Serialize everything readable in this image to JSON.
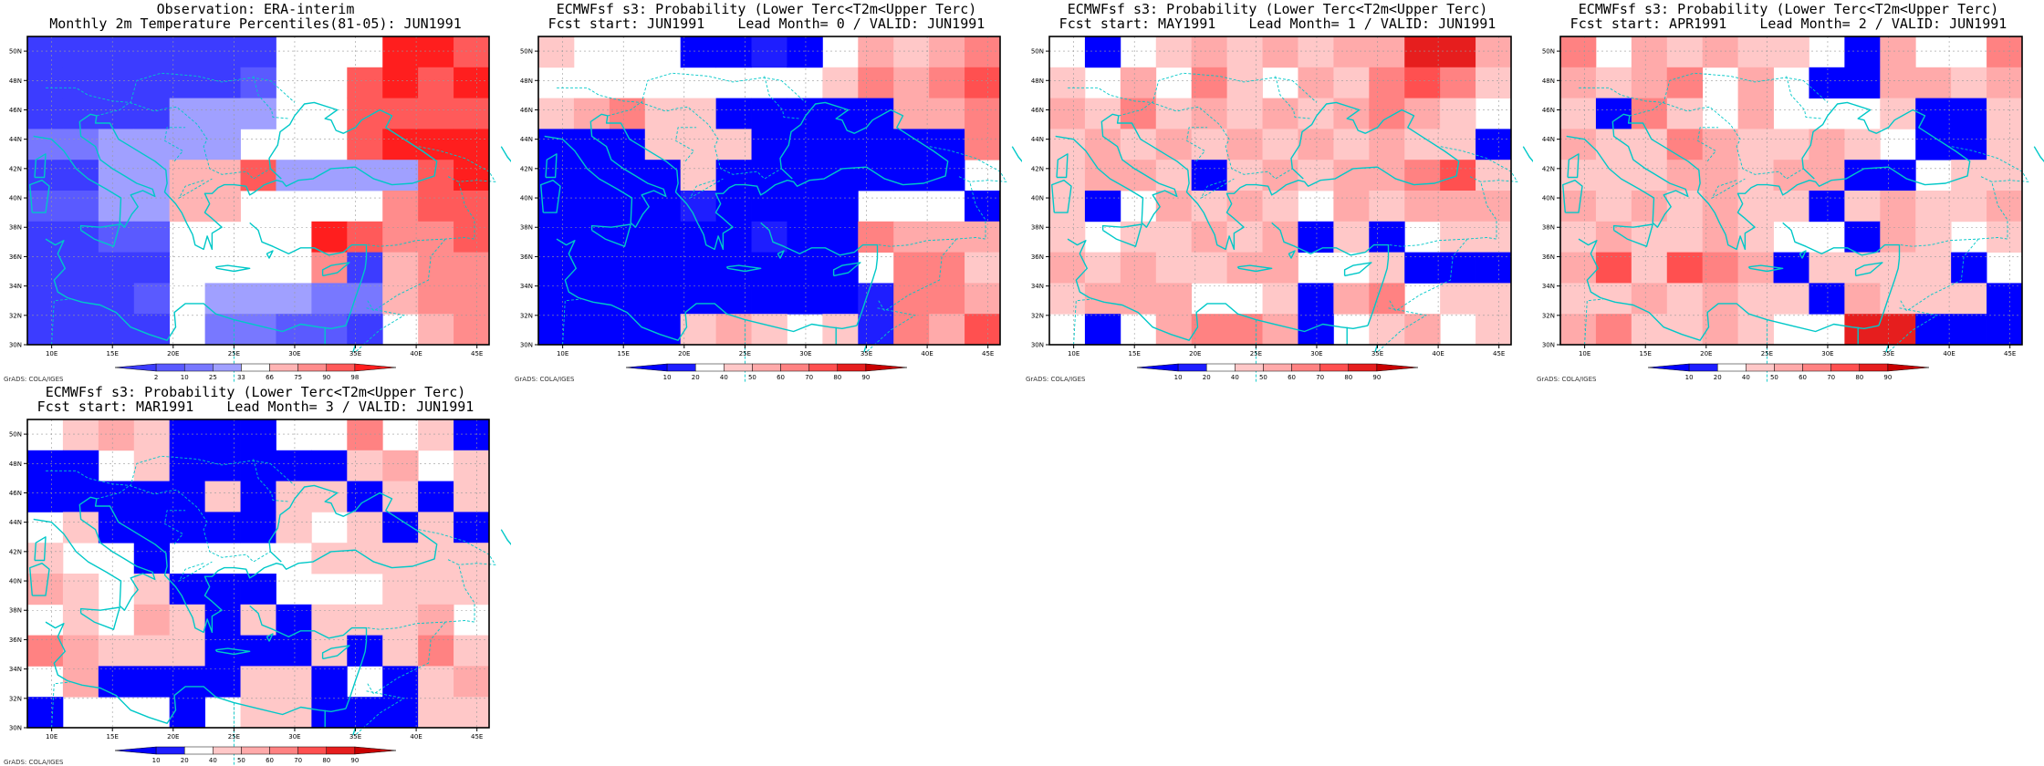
{
  "palettes": {
    "obs": [
      "#3c3cff",
      "#5a5aff",
      "#7878ff",
      "#a0a0ff",
      "#ffffff",
      "#ffb4b4",
      "#ff8c8c",
      "#ff5a5a",
      "#ff1e1e"
    ],
    "prob": [
      "#0000ff",
      "#1e1eff",
      "#ffffff",
      "#ffc8c8",
      "#ffaaaa",
      "#ff8282",
      "#ff5050",
      "#e61e1e",
      "#c80000"
    ]
  },
  "map": {
    "x_ticks": [
      "10E",
      "15E",
      "20E",
      "25E",
      "30E",
      "35E",
      "40E",
      "45E"
    ],
    "y_ticks": [
      "30N",
      "32N",
      "34N",
      "36N",
      "38N",
      "40N",
      "42N",
      "44N",
      "46N",
      "48N",
      "50N"
    ],
    "lon_range": [
      8,
      46
    ],
    "lat_range": [
      30,
      51
    ],
    "coast_color": "#00c8c8",
    "grid": true
  },
  "panels": [
    {
      "title_line1": "Observation: ERA-interim",
      "title_line2": "Monthly 2m Temperature Percentiles(81-05): JUN1991",
      "credit": "GrADS: COLA/IGES",
      "palette": "obs",
      "colorbar_labels": [
        "2",
        "10",
        "25",
        "33",
        "66",
        "75",
        "90",
        "98"
      ],
      "grid_cols": 13,
      "grid_rows": 10,
      "cells": [
        "0000000444887",
        "0000001447878",
        "0000333447777",
        "2233334447888",
        "0033557333378",
        "1133554444677",
        "0011444487667",
        "0000444460566",
        "0001433322566",
        "0000422110456"
      ]
    },
    {
      "title_line1": "ECMWFsf s3: Probability (Lower Terc<T2m<Upper Terc)",
      "title_line2": "Fcst start: JUN1991    Lead Month= 0 / VALID: JUN1991",
      "credit": "GrADS: COLA/IGES",
      "palette": "prob",
      "colorbar_labels": [
        "10",
        "20",
        "40",
        "50",
        "60",
        "70",
        "80",
        "90"
      ],
      "grid_cols": 13,
      "grid_rows": 10,
      "cells": [
        "3222001024345",
        "2222222235456",
        "3453300000445",
        "0003330000005",
        "0000300000002",
        "0000100002220",
        "0000001005444",
        "0000000002553",
        "0000000001554",
        "0000343231546"
      ]
    },
    {
      "title_line1": "ECMWFsf s3: Probability (Lower Terc<T2m<Upper Terc)",
      "title_line2": "Fcst start: MAY1991    Lead Month= 1 / VALID: JUN1991",
      "credit": "GrADS: COLA/IGES",
      "palette": "prob",
      "colorbar_labels": [
        "10",
        "20",
        "40",
        "50",
        "60",
        "70",
        "80",
        "90"
      ],
      "grid_cols": 13,
      "grid_rows": 10,
      "cells": [
        "2023434344774",
        "3242532435653",
        "4353434345432",
        "3434343434330",
        "3443034344563",
        "3024343243444",
        "3233434030233",
        "4343344223000",
        "3444223045233",
        "2024554023423"
      ]
    },
    {
      "title_line1": "ECMWFsf s3: Probability (Lower Terc<T2m<Upper Terc)",
      "title_line2": "Fcst start: APR1991    Lead Month= 2 / VALID: JUN1991",
      "credit": "GrADS: COLA/IGES",
      "palette": "prob",
      "colorbar_labels": [
        "10",
        "20",
        "40",
        "50",
        "60",
        "70",
        "80",
        "90"
      ],
      "grid_cols": 13,
      "grid_rows": 10,
      "cells": [
        "5243433204225",
        "4345242004434",
        "3053242223003",
        "4335433432003",
        "3334434400233",
        "4343433034334",
        "3433432204323",
        "4636540333302",
        "3343433043330",
        "4533432277000"
      ]
    },
    {
      "title_line1": "ECMWFsf s3: Probability (Lower Terc<T2m<Upper Terc)",
      "title_line2": "Fcst start: MAR1991    Lead Month= 3 / VALID: JUN1991",
      "credit": "GrADS: COLA/IGES",
      "palette": "prob",
      "colorbar_labels": [
        "10",
        "20",
        "40",
        "50",
        "60",
        "70",
        "80",
        "90"
      ],
      "grid_cols": 13,
      "grid_rows": 10,
      "cells": [
        "2343000225230",
        "0023000003423",
        "0000030330303",
        "2300000323030",
        "3220222233333",
        "4323000222333",
        "2324303033342",
        "5433300030353",
        "2400003302034",
        "0222023300033"
      ]
    }
  ]
}
